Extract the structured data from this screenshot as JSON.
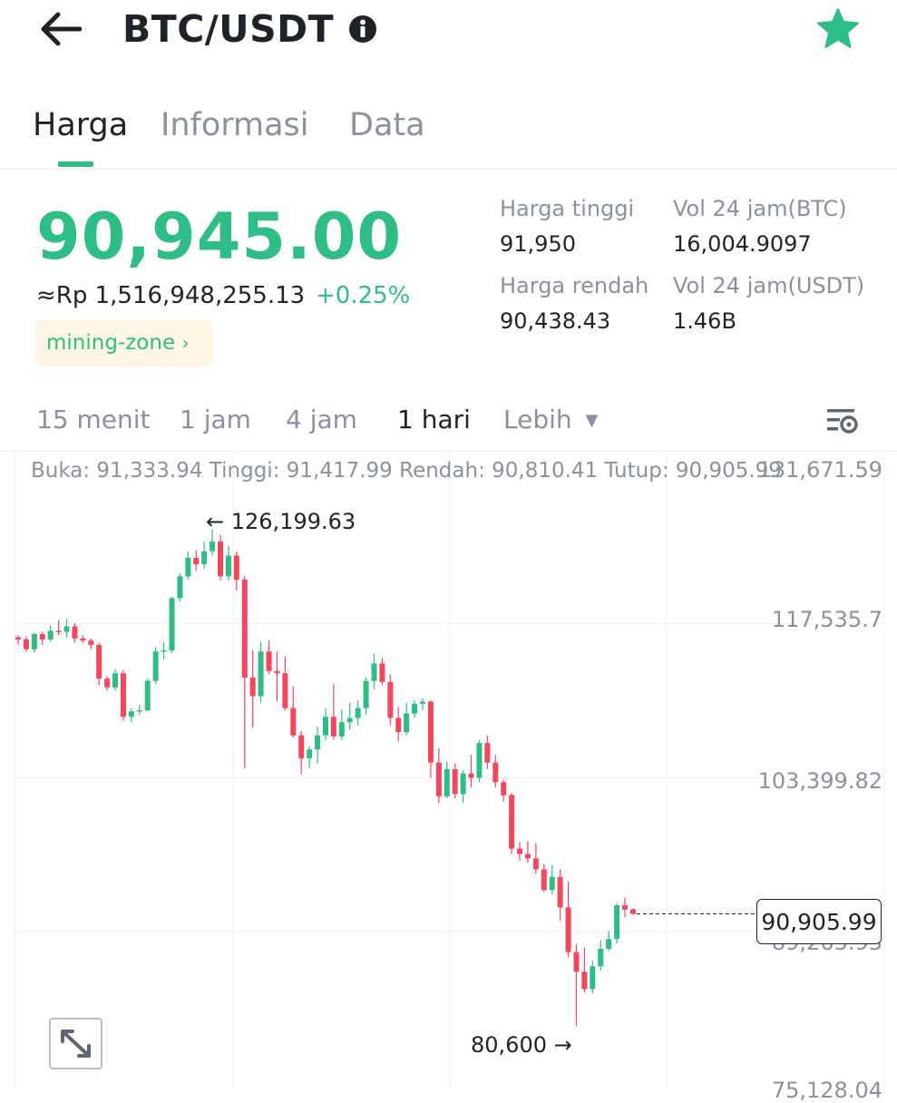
{
  "header": {
    "title": "BTC/USDT"
  },
  "icons": {
    "back": "back-arrow-icon",
    "info": "info-icon",
    "star": "star-icon",
    "settings": "chart-settings-icon",
    "expand": "expand-icon"
  },
  "tabs": [
    {
      "label": "Harga",
      "active": true
    },
    {
      "label": "Informasi",
      "active": false
    },
    {
      "label": "Data",
      "active": false
    }
  ],
  "price": {
    "last": "90,945.00",
    "approx_idr": "≈Rp 1,516,948,255.13",
    "change_pct": "+0.25%",
    "tag": "mining-zone"
  },
  "stats": {
    "high_label": "Harga tinggi",
    "high_value": "91,950",
    "low_label": "Harga rendah",
    "low_value": "90,438.43",
    "vol_btc_label": "Vol 24 jam(BTC)",
    "vol_btc_value": "16,004.9097",
    "vol_usdt_label": "Vol 24 jam(USDT)",
    "vol_usdt_value": "1.46B"
  },
  "timeframes": [
    {
      "label": "15 menit"
    },
    {
      "label": "1 jam"
    },
    {
      "label": "4 jam"
    },
    {
      "label": "1 hari",
      "active": true
    },
    {
      "label": "Lebih"
    }
  ],
  "ohlc_text": "Buka: 91,333.94 Tinggi: 91,417.99 Rendah: 90,810.41 Tutup: 90,905.99",
  "colors": {
    "up": "#2ebd85",
    "down": "#f6465d",
    "grid": "#eef0f2"
  },
  "chart_data": {
    "type": "candlestick",
    "y_axis_labels": [
      "131,671.59",
      "117,535.7",
      "103,399.82",
      "89,263.93",
      "75,128.04"
    ],
    "ylim": [
      75128.04,
      131671.59
    ],
    "high_annotation": "126,199.63",
    "low_annotation": "80,600",
    "current_price": "90,905.99",
    "candles": [
      [
        116300,
        116500,
        115600,
        116100
      ],
      [
        116100,
        116400,
        115000,
        115200
      ],
      [
        115200,
        116700,
        114900,
        116600
      ],
      [
        116600,
        116800,
        115600,
        116100
      ],
      [
        116100,
        117400,
        115900,
        116900
      ],
      [
        116900,
        117900,
        116500,
        116800
      ],
      [
        116800,
        118000,
        116300,
        117300
      ],
      [
        117300,
        117600,
        115800,
        116200
      ],
      [
        116200,
        116500,
        115800,
        116000
      ],
      [
        116000,
        116200,
        115200,
        115600
      ],
      [
        115600,
        115800,
        111900,
        112500
      ],
      [
        112500,
        112700,
        111400,
        111700
      ],
      [
        111700,
        113400,
        111400,
        113000
      ],
      [
        113000,
        113300,
        108600,
        109000
      ],
      [
        109000,
        109800,
        108500,
        109500
      ],
      [
        109500,
        110100,
        109200,
        109600
      ],
      [
        109600,
        112500,
        109500,
        112300
      ],
      [
        112300,
        115400,
        112000,
        115000
      ],
      [
        115000,
        115800,
        114300,
        115100
      ],
      [
        115100,
        120000,
        114900,
        119900
      ],
      [
        119900,
        122200,
        119600,
        121900
      ],
      [
        121900,
        124200,
        121600,
        123600
      ],
      [
        123600,
        124300,
        122400,
        123000
      ],
      [
        123000,
        125100,
        122600,
        124200
      ],
      [
        124200,
        126200,
        123800,
        125100
      ],
      [
        125100,
        125700,
        121500,
        121900
      ],
      [
        121900,
        124700,
        121500,
        123800
      ],
      [
        123800,
        124200,
        120600,
        121600
      ],
      [
        121600,
        121900,
        104300,
        112600
      ],
      [
        112600,
        115100,
        108000,
        110900
      ],
      [
        110900,
        115900,
        110300,
        115000
      ],
      [
        115000,
        116000,
        112900,
        113200
      ],
      [
        113200,
        115000,
        110400,
        113000
      ],
      [
        113000,
        114500,
        109600,
        109800
      ],
      [
        109800,
        111800,
        107100,
        107300
      ],
      [
        107300,
        107700,
        103700,
        105200
      ],
      [
        105200,
        106300,
        104300,
        106000
      ],
      [
        106000,
        108100,
        104700,
        107300
      ],
      [
        107300,
        109800,
        106800,
        109000
      ],
      [
        109000,
        112000,
        106900,
        107200
      ],
      [
        107200,
        109700,
        106900,
        108500
      ],
      [
        108500,
        110300,
        107800,
        108900
      ],
      [
        108900,
        110500,
        108200,
        109800
      ],
      [
        109800,
        112600,
        109200,
        112300
      ],
      [
        112300,
        114800,
        111500,
        113900
      ],
      [
        113900,
        114400,
        111900,
        112200
      ],
      [
        112200,
        112900,
        108200,
        108900
      ],
      [
        108900,
        109900,
        106700,
        107600
      ],
      [
        107600,
        110300,
        107300,
        109300
      ],
      [
        109300,
        110500,
        108900,
        110200
      ],
      [
        110200,
        110700,
        109600,
        110400
      ],
      [
        110400,
        110500,
        103400,
        104800
      ],
      [
        104800,
        106100,
        101100,
        101700
      ],
      [
        101700,
        104900,
        101500,
        104200
      ],
      [
        104200,
        104700,
        101500,
        101900
      ],
      [
        101900,
        104100,
        101100,
        103800
      ],
      [
        103800,
        105500,
        102500,
        103400
      ],
      [
        103400,
        106900,
        103000,
        106600
      ],
      [
        106600,
        107300,
        104200,
        104800
      ],
      [
        104800,
        105500,
        102500,
        103000
      ],
      [
        103000,
        103200,
        101200,
        101800
      ],
      [
        101800,
        102000,
        96400,
        96900
      ],
      [
        96900,
        97500,
        95800,
        96400
      ],
      [
        96400,
        97600,
        95600,
        96000
      ],
      [
        96000,
        97400,
        94600,
        95000
      ],
      [
        95000,
        95500,
        92900,
        93100
      ],
      [
        93100,
        95400,
        92700,
        94300
      ],
      [
        94300,
        95000,
        90300,
        91500
      ],
      [
        91500,
        93900,
        86900,
        87400
      ],
      [
        87400,
        88100,
        80600,
        85600
      ],
      [
        85600,
        87800,
        83700,
        84000
      ],
      [
        84000,
        86600,
        83600,
        86100
      ],
      [
        86100,
        88500,
        85700,
        87700
      ],
      [
        87700,
        89300,
        87500,
        88600
      ],
      [
        88600,
        91900,
        88200,
        91700
      ],
      [
        91700,
        92400,
        90600,
        91300
      ],
      [
        91333.94,
        91417.99,
        90810.41,
        90905.99
      ]
    ]
  }
}
